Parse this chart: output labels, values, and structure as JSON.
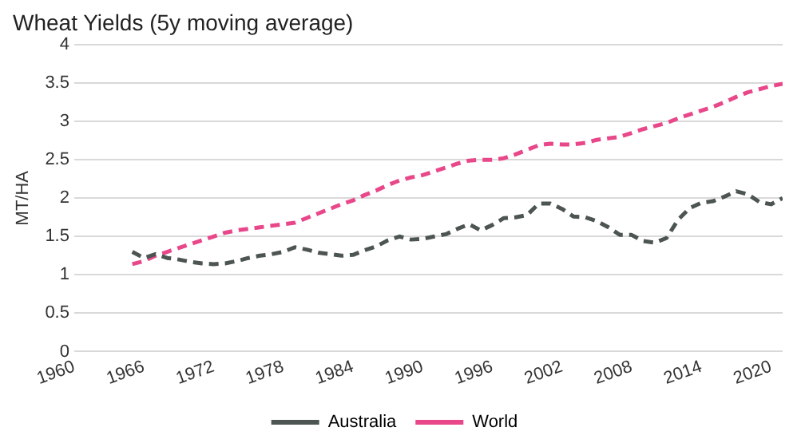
{
  "chart_data": {
    "type": "line",
    "title": "Wheat Yields (5y moving average)",
    "ylabel": "MT/HA",
    "x": [
      1965,
      1966,
      1967,
      1968,
      1969,
      1970,
      1971,
      1972,
      1973,
      1974,
      1975,
      1976,
      1977,
      1978,
      1979,
      1980,
      1981,
      1982,
      1983,
      1984,
      1985,
      1986,
      1987,
      1988,
      1989,
      1990,
      1991,
      1992,
      1993,
      1994,
      1995,
      1996,
      1997,
      1998,
      1999,
      2000,
      2001,
      2002,
      2003,
      2004,
      2005,
      2006,
      2007,
      2008,
      2009,
      2010,
      2011,
      2012,
      2013,
      2014,
      2015,
      2016,
      2017,
      2018,
      2019,
      2020,
      2021
    ],
    "series": [
      {
        "name": "Australia",
        "color": "#4d5553",
        "values": [
          1.3,
          1.22,
          1.27,
          1.22,
          1.2,
          1.17,
          1.15,
          1.14,
          1.15,
          1.18,
          1.22,
          1.25,
          1.27,
          1.3,
          1.36,
          1.33,
          1.29,
          1.27,
          1.25,
          1.26,
          1.32,
          1.37,
          1.45,
          1.5,
          1.46,
          1.47,
          1.5,
          1.53,
          1.6,
          1.66,
          1.58,
          1.65,
          1.74,
          1.75,
          1.78,
          1.93,
          1.93,
          1.86,
          1.76,
          1.75,
          1.7,
          1.62,
          1.52,
          1.52,
          1.44,
          1.42,
          1.48,
          1.72,
          1.87,
          1.94,
          1.96,
          2.02,
          2.09,
          2.05,
          1.95,
          1.92,
          2.0
        ]
      },
      {
        "name": "World",
        "color": "#e8488a",
        "values": [
          1.14,
          1.18,
          1.25,
          1.3,
          1.35,
          1.4,
          1.45,
          1.5,
          1.55,
          1.58,
          1.6,
          1.62,
          1.64,
          1.66,
          1.68,
          1.74,
          1.8,
          1.86,
          1.92,
          1.97,
          2.04,
          2.1,
          2.17,
          2.23,
          2.27,
          2.3,
          2.35,
          2.4,
          2.45,
          2.49,
          2.5,
          2.5,
          2.52,
          2.57,
          2.63,
          2.69,
          2.71,
          2.7,
          2.7,
          2.72,
          2.76,
          2.78,
          2.8,
          2.85,
          2.9,
          2.94,
          2.98,
          3.04,
          3.09,
          3.14,
          3.19,
          3.25,
          3.32,
          3.38,
          3.42,
          3.46,
          3.49
        ]
      }
    ],
    "xlim": [
      1960,
      2021
    ],
    "xticks": [
      1960,
      1966,
      1972,
      1978,
      1984,
      1990,
      1996,
      2002,
      2008,
      2014,
      2020
    ],
    "ylim": [
      0,
      4
    ],
    "yticks": [
      0,
      0.5,
      1,
      1.5,
      2,
      2.5,
      3,
      3.5,
      4
    ],
    "grid": "y",
    "legend": "bottom",
    "marker": "none",
    "line_style": "dashed"
  }
}
